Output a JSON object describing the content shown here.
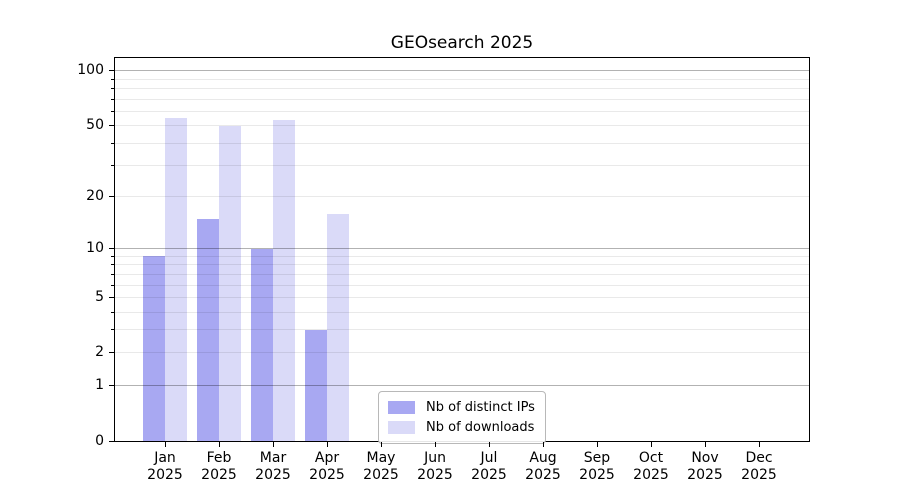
{
  "title": "GEOsearch 2025",
  "chart_data": {
    "type": "bar",
    "title": "GEOsearch 2025",
    "categories": [
      "Jan 2025",
      "Feb 2025",
      "Mar 2025",
      "Apr 2025",
      "May 2025",
      "Jun 2025",
      "Jul 2025",
      "Aug 2025",
      "Sep 2025",
      "Oct 2025",
      "Nov 2025",
      "Dec 2025"
    ],
    "x_months": [
      "Jan",
      "Feb",
      "Mar",
      "Apr",
      "May",
      "Jun",
      "Jul",
      "Aug",
      "Sep",
      "Oct",
      "Nov",
      "Dec"
    ],
    "x_year": "2025",
    "series": [
      {
        "name": "Nb of distinct IPs",
        "key": "distinct-ips",
        "color": "#a8a8f2",
        "values": [
          9,
          15,
          10,
          3,
          0,
          0,
          0,
          0,
          0,
          0,
          0,
          0
        ]
      },
      {
        "name": "Nb of downloads",
        "key": "downloads",
        "color": "#dadaf8",
        "values": [
          55,
          50,
          54,
          16,
          0,
          0,
          0,
          0,
          0,
          0,
          0,
          0
        ]
      }
    ],
    "yscale": "log1p",
    "ylim": [
      0,
      117.7
    ],
    "y_tick_labels": [
      "0",
      "1",
      "2",
      "5",
      "10",
      "20",
      "50",
      "100"
    ],
    "y_tick_values": [
      0,
      1,
      2,
      5,
      10,
      20,
      50,
      100
    ],
    "y_major_grid": [
      1,
      10,
      100
    ],
    "y_minor_grid": [
      2,
      3,
      4,
      5,
      6,
      7,
      8,
      9,
      20,
      30,
      40,
      50,
      60,
      70,
      80,
      90
    ],
    "grid": "horizontal, drawn above bars",
    "legend_position": "lower center"
  },
  "colors": {
    "series_distinct_ips": "#a8a8f2",
    "series_downloads": "#dadaf8",
    "major_grid": "#b4b4b4",
    "minor_grid": "#e9e9e9",
    "axis": "#000000",
    "legend_border": "#b8b8b8",
    "background": "#ffffff"
  }
}
